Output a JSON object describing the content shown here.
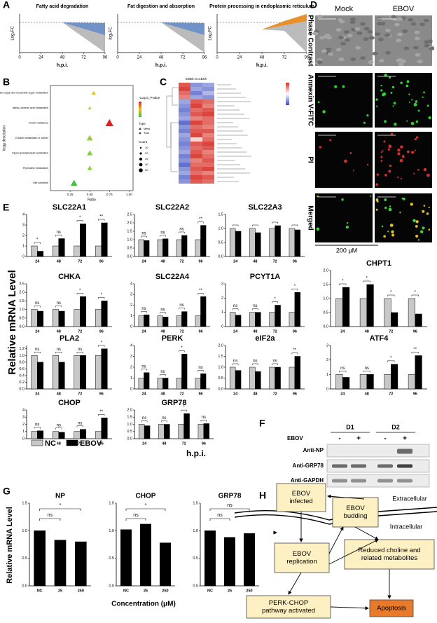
{
  "panel_labels": [
    "A",
    "B",
    "C",
    "D",
    "E",
    "F",
    "G",
    "H"
  ],
  "chart_data": [
    {
      "type": "fan",
      "title": "Fatty acid degradation",
      "ylabel": "Log₂FC",
      "xlabel": "h.p.i.",
      "xlim": [
        0,
        96
      ],
      "xticks": [
        0,
        24,
        48,
        72,
        96
      ],
      "color": "#6f93c9"
    },
    {
      "type": "fan",
      "title": "Fat digestion and absorption",
      "ylabel": "log₂FC",
      "xlabel": "h.p.i.",
      "xlim": [
        0,
        96
      ],
      "xticks": [
        0,
        24,
        48,
        72,
        96
      ],
      "color": "#6f93c9"
    },
    {
      "type": "fan",
      "title": "Protein processing in endoplasmic reticulum",
      "ylabel": "Log₂FC",
      "xlabel": "h.p.i.",
      "xlim": [
        0,
        96
      ],
      "xticks": [
        0,
        24,
        48,
        72,
        96
      ],
      "color": "#e8902a"
    },
    {
      "type": "scatter",
      "ylabel": "kegg description",
      "xlabel": "Ratio",
      "categories": [
        "Amino sugar and nucleotide sugar metabolism",
        "alpha-Linolenic acid metabolism",
        "Insulin resistance",
        "Choline metabolism in cancer",
        "Glycerophospholipid metabolism",
        "Pyrimidine metabolism",
        "Bile secretion"
      ],
      "values": [
        0.55,
        0.5,
        0.75,
        0.5,
        0.5,
        0.5,
        0.3
      ],
      "sizes": [
        20,
        12,
        50,
        35,
        30,
        25,
        40
      ],
      "colors": [
        "#e8c020",
        "#a8d040",
        "#e02020",
        "#90d040",
        "#80d040",
        "#90d040",
        "#40c040"
      ],
      "xlim": [
        0,
        1.05
      ],
      "xticks": [
        0.25,
        {
          "value": 0.5,
          "label": "0.50"
        },
        0.75,
        {
          "value": 1,
          "label": "1.00"
        }
      ],
      "legend_title": "-Log10_Pvalue",
      "type_title": "Type",
      "type_names": [
        "Meta",
        "Tran"
      ],
      "count_title": "Count",
      "count_ticks": [
        10,
        20,
        30,
        40,
        50
      ]
    },
    {
      "type": "heatmap",
      "title": "EBBh.vs.CBSh",
      "values": [
        [
          0.8,
          -0.6,
          -0.5
        ],
        [
          0.9,
          -0.5,
          -0.6
        ],
        [
          0.7,
          -0.7,
          -0.4
        ],
        [
          0.6,
          -0.5,
          -0.6
        ],
        [
          -0.5,
          0.8,
          0.7
        ],
        [
          -0.6,
          0.9,
          0.6
        ],
        [
          -0.7,
          0.7,
          0.8
        ],
        [
          -0.6,
          0.8,
          0.9
        ],
        [
          -0.5,
          0.6,
          0.7
        ],
        [
          -0.8,
          0.9,
          0.7
        ],
        [
          -0.6,
          0.7,
          0.6
        ],
        [
          -0.7,
          0.8,
          0.8
        ],
        [
          -0.5,
          0.9,
          0.6
        ],
        [
          -0.6,
          0.2,
          0.7
        ],
        [
          -0.7,
          0.8,
          0.9
        ],
        [
          -0.6,
          0.7,
          0.8
        ],
        [
          -0.5,
          0.8,
          0.6
        ],
        [
          -0.7,
          0.9,
          0.7
        ],
        [
          -0.6,
          0.6,
          0.8
        ],
        [
          -0.8,
          0.7,
          0.7
        ],
        [
          -0.6,
          0.8,
          0.9
        ],
        [
          -0.5,
          0.7,
          0.6
        ],
        [
          -0.7,
          0.9,
          0.8
        ],
        [
          -0.6,
          0.8,
          0.7
        ]
      ]
    },
    {
      "type": "bar",
      "title": "SLC22A1",
      "categories": [
        "24",
        "48",
        "72",
        "96"
      ],
      "series": [
        {
          "color": "#c8c8c8",
          "values": [
            1,
            1,
            1,
            1
          ]
        },
        {
          "color": "#000000",
          "values": [
            0.5,
            1.7,
            3.1,
            3.2
          ]
        }
      ],
      "ylim": [
        0,
        4
      ],
      "yticks": [
        0,
        1,
        2,
        3,
        4
      ],
      "annotations": [
        "*",
        "ns",
        "*",
        "**"
      ]
    },
    {
      "type": "bar",
      "title": "SLC22A2",
      "categories": [
        "24",
        "48",
        "72",
        "96"
      ],
      "series": [
        {
          "color": "#c8c8c8",
          "values": [
            1,
            1,
            1,
            1
          ]
        },
        {
          "color": "#000000",
          "values": [
            0.95,
            1.05,
            1.25,
            1.85
          ]
        }
      ],
      "ylim": [
        0,
        2.5
      ],
      "yticks": [
        {
          "value": 0,
          "label": "0.0"
        },
        0.5,
        {
          "value": 1,
          "label": "1.0"
        },
        1.5,
        {
          "value": 2,
          "label": "2.0"
        },
        2.5
      ],
      "annotations": [
        "ns",
        "ns",
        "ns",
        "**"
      ]
    },
    {
      "type": "bar",
      "title": "SLC22A3",
      "categories": [
        "24",
        "48",
        "72",
        "96"
      ],
      "series": [
        {
          "color": "#c8c8c8",
          "values": [
            1,
            1,
            1,
            1
          ]
        },
        {
          "color": "#000000",
          "values": [
            0.9,
            0.85,
            1.1,
            0.95
          ]
        }
      ],
      "ylim": [
        0,
        1.5
      ],
      "yticks": [
        {
          "value": 0,
          "label": "0.0"
        },
        0.5,
        {
          "value": 1,
          "label": "1.0"
        },
        1.5
      ]
    },
    {
      "type": "bar",
      "title": "CHKA",
      "categories": [
        "24",
        "48",
        "72",
        "96"
      ],
      "series": [
        {
          "color": "#c8c8c8",
          "values": [
            1,
            1,
            1,
            1
          ]
        },
        {
          "color": "#000000",
          "values": [
            0.9,
            0.9,
            1.75,
            1.5
          ]
        }
      ],
      "ylim": [
        0,
        2.5
      ],
      "yticks": [
        {
          "value": 0,
          "label": "0.0"
        },
        0.5,
        {
          "value": 1,
          "label": "1.0"
        },
        1.5,
        {
          "value": 2,
          "label": "2.0"
        },
        2.5
      ],
      "annotations": [
        "ns",
        "ns",
        "*",
        "*"
      ]
    },
    {
      "type": "bar",
      "title": "SLC22A4",
      "categories": [
        "24",
        "48",
        "72",
        "96"
      ],
      "series": [
        {
          "color": "#c8c8c8",
          "values": [
            1,
            1,
            1,
            1
          ]
        },
        {
          "color": "#000000",
          "values": [
            1.1,
            0.9,
            1.4,
            2.8
          ]
        }
      ],
      "ylim": [
        0,
        4
      ],
      "yticks": [
        0,
        1,
        2,
        3,
        4
      ],
      "annotations": [
        "ns",
        "ns",
        "ns",
        "**"
      ]
    },
    {
      "type": "bar",
      "title": "PCYT1A",
      "categories": [
        "24",
        "48",
        "72",
        "96"
      ],
      "series": [
        {
          "color": "#c8c8c8",
          "values": [
            1,
            1,
            1,
            1
          ]
        },
        {
          "color": "#000000",
          "values": [
            0.8,
            1,
            1.5,
            2.4
          ]
        }
      ],
      "ylim": [
        0,
        3
      ],
      "yticks": [
        0,
        1,
        2,
        3
      ],
      "annotations": [
        "ns",
        "ns",
        "*",
        "*"
      ]
    },
    {
      "type": "bar",
      "title": "CHPT1",
      "categories": [
        "24",
        "48",
        "72",
        "96"
      ],
      "series": [
        {
          "color": "#c8c8c8",
          "values": [
            1,
            1,
            1,
            1
          ]
        },
        {
          "color": "#000000",
          "values": [
            1.4,
            1.5,
            0.5,
            0.45
          ]
        }
      ],
      "ylim": [
        0,
        2
      ],
      "yticks": [
        {
          "value": 0,
          "label": "0.0"
        },
        0.5,
        {
          "value": 1,
          "label": "1.0"
        },
        1.5,
        {
          "value": 2,
          "label": "2.0"
        }
      ],
      "annotations": [
        "*",
        "*",
        "*",
        "*"
      ]
    },
    {
      "type": "bar",
      "title": "PLA2",
      "categories": [
        "24",
        "48",
        "72",
        "96"
      ],
      "series": [
        {
          "color": "#c8c8c8",
          "values": [
            1,
            1,
            1,
            1
          ]
        },
        {
          "color": "#000000",
          "values": [
            0.8,
            0.8,
            1,
            1.2
          ]
        }
      ],
      "ylim": [
        0,
        1.3
      ],
      "yticks": [
        {
          "value": 0,
          "label": "0.0"
        },
        0.2,
        0.4,
        0.6,
        0.8,
        {
          "value": 1,
          "label": "1.0"
        },
        1.2
      ],
      "annotations": [
        "ns",
        "ns",
        "ns",
        "*"
      ]
    },
    {
      "type": "bar",
      "title": "PERK",
      "categories": [
        "24",
        "48",
        "72",
        "96"
      ],
      "series": [
        {
          "color": "#c8c8c8",
          "values": [
            1,
            1,
            1,
            1
          ]
        },
        {
          "color": "#000000",
          "values": [
            1.5,
            1,
            3.2,
            1.4
          ]
        }
      ],
      "ylim": [
        0,
        4
      ],
      "yticks": [
        0,
        1,
        2,
        3,
        4
      ],
      "annotations": [
        "ns",
        "ns",
        "*",
        "ns"
      ]
    },
    {
      "type": "bar",
      "title": "eIF2a",
      "categories": [
        "24",
        "48",
        "72",
        "96"
      ],
      "series": [
        {
          "color": "#c8c8c8",
          "values": [
            1,
            1,
            1,
            1
          ]
        },
        {
          "color": "#000000",
          "values": [
            0.85,
            0.8,
            1,
            1.5
          ]
        }
      ],
      "ylim": [
        0,
        2
      ],
      "yticks": [
        {
          "value": 0,
          "label": "0.0"
        },
        0.5,
        {
          "value": 1,
          "label": "1.0"
        },
        1.5,
        {
          "value": 2,
          "label": "2.0"
        }
      ],
      "annotations": [
        "ns",
        "ns",
        "ns",
        "**"
      ]
    },
    {
      "type": "bar",
      "title": "ATF4",
      "categories": [
        "24",
        "48",
        "72",
        "96"
      ],
      "series": [
        {
          "color": "#c8c8c8",
          "values": [
            1,
            1,
            1,
            1
          ]
        },
        {
          "color": "#000000",
          "values": [
            0.8,
            1,
            1.7,
            2.3
          ]
        }
      ],
      "ylim": [
        0,
        3
      ],
      "yticks": [
        0,
        1,
        2,
        3
      ],
      "annotations": [
        "ns",
        "ns",
        "*",
        "**"
      ]
    },
    {
      "type": "bar",
      "title": "CHOP",
      "categories": [
        "24",
        "48",
        "72",
        "96"
      ],
      "series": [
        {
          "color": "#c8c8c8",
          "values": [
            1,
            1,
            1,
            1
          ]
        },
        {
          "color": "#000000",
          "values": [
            1.1,
            0.9,
            1.3,
            2.9
          ]
        }
      ],
      "ylim": [
        0,
        4
      ],
      "yticks": [
        0,
        1,
        2,
        3,
        4
      ],
      "annotations": [
        "ns",
        "ns",
        "ns",
        "**"
      ]
    },
    {
      "type": "bar",
      "title": "GRP78",
      "categories": [
        "24",
        "48",
        "72",
        "96"
      ],
      "series": [
        {
          "color": "#c8c8c8",
          "values": [
            1,
            1,
            1,
            1
          ]
        },
        {
          "color": "#000000",
          "values": [
            0.9,
            1,
            1.75,
            1.05
          ]
        }
      ],
      "ylim": [
        0,
        2
      ],
      "yticks": [
        {
          "value": 0,
          "label": "0.0"
        },
        0.5,
        {
          "value": 1,
          "label": "1.0"
        },
        1.5,
        {
          "value": 2,
          "label": "2.0"
        }
      ],
      "annotations": [
        "ns",
        "ns",
        "*",
        "ns"
      ]
    },
    {
      "type": "bar",
      "title": "NP",
      "categories": [
        "NC",
        "25",
        "250"
      ],
      "series": [
        {
          "color": "#000000",
          "values": [
            1,
            0.83,
            0.8
          ]
        }
      ],
      "ylim": [
        0,
        1.5
      ],
      "yticks": [
        {
          "value": 0,
          "label": "0.0"
        },
        0.5,
        {
          "value": 1,
          "label": "1.0"
        },
        1.5
      ],
      "annotations": [
        null,
        "ns",
        "*"
      ]
    },
    {
      "type": "bar",
      "title": "CHOP",
      "categories": [
        "NC",
        "25",
        "250"
      ],
      "series": [
        {
          "color": "#000000",
          "values": [
            1.02,
            1.12,
            0.78
          ]
        }
      ],
      "ylim": [
        0,
        1.5
      ],
      "yticks": [
        {
          "value": 0,
          "label": "0.0"
        },
        0.5,
        {
          "value": 1,
          "label": "1.0"
        },
        1.5
      ],
      "annotations": [
        null,
        "ns",
        "*"
      ]
    },
    {
      "type": "bar",
      "title": "GRP78",
      "categories": [
        "NC",
        "25",
        "250"
      ],
      "series": [
        {
          "color": "#000000",
          "values": [
            1,
            0.88,
            0.95
          ]
        }
      ],
      "ylim": [
        0,
        1.5
      ],
      "yticks": [
        {
          "value": 0,
          "label": "0.0"
        },
        0.5,
        {
          "value": 1,
          "label": "1.0"
        },
        1.5
      ],
      "annotations": [
        null,
        "ns",
        "ns"
      ]
    }
  ],
  "E": {
    "ylabel": "Relative mRNA Level",
    "xlabel": "h.p.i.",
    "legend": [
      {
        "name": "NC",
        "color": "#c8c8c8"
      },
      {
        "name": "EBOV",
        "color": "#000000"
      }
    ]
  },
  "G": {
    "ylabel": "Relative mRNA Level",
    "xlabel": "Concentration (μM)"
  },
  "D": {
    "columns": [
      "Mock",
      "EBOV"
    ],
    "rows": [
      "Phase Contrast",
      "Annexin V-FITC",
      "PI",
      "Merged"
    ],
    "scale": "200 μM"
  },
  "F": {
    "groups": [
      "D1",
      "D2"
    ],
    "treatment": "EBOV",
    "signs": [
      "-",
      "+",
      "-",
      "+"
    ],
    "rows": [
      "Anti-NP",
      "Anti-GRP78",
      "Anti-GAPDH"
    ]
  },
  "H": {
    "nodes": [
      {
        "lines": [
          "EBOV",
          "infected"
        ]
      },
      {
        "lines": [
          "EBOV",
          "budding"
        ]
      },
      {
        "lines": [
          "EBOV",
          "replication"
        ]
      },
      {
        "lines": [
          "Reduced choline and",
          "related metabolites"
        ]
      },
      {
        "lines": [
          "PERK-CHOP",
          "pathway activated"
        ]
      },
      {
        "lines": [
          "Apoptosis"
        ]
      }
    ],
    "regions": [
      "Extracellular",
      "Intracellular"
    ]
  }
}
